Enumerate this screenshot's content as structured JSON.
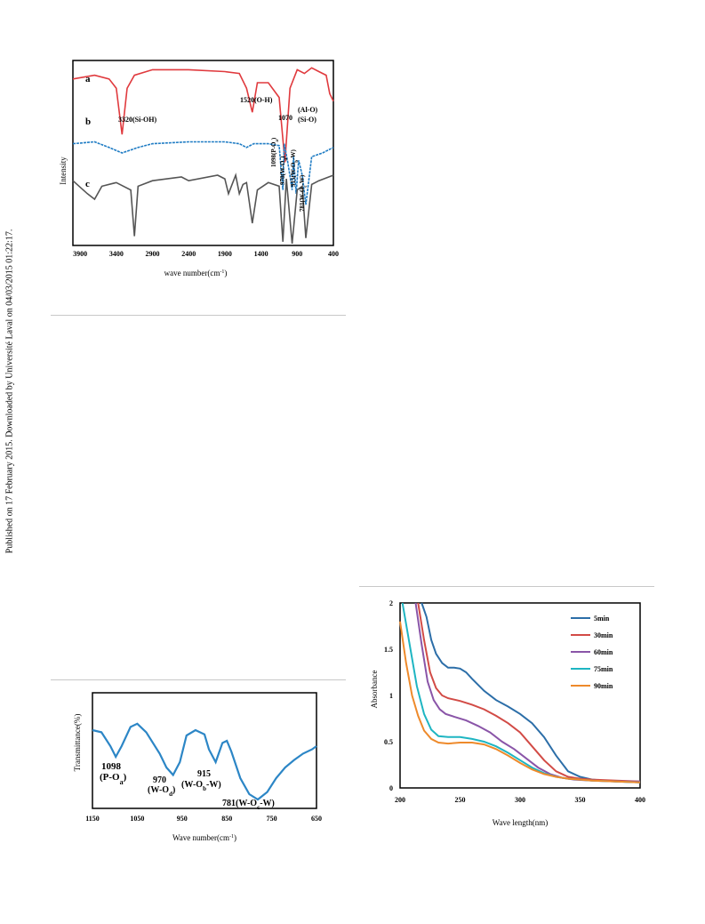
{
  "side_note": "Published on 17 February 2015. Downloaded by Université Laval on 04/03/2015 01:22:17.",
  "colors": {
    "red": "#e03a3e",
    "blue": "#1f7cc4",
    "gray": "#555555",
    "orange": "#ee8a2b",
    "purple": "#8a55a8",
    "teal": "#1eb5c2",
    "darkblue": "#2c6ea8"
  },
  "chart_data": [
    {
      "type": "line",
      "xlabel_main": "wave number(cm",
      "xlabel_sup": "-1",
      "xlabel_end": ")",
      "ylabel": "Intensity",
      "x_ticks": [
        "3900",
        "3400",
        "2900",
        "2400",
        "1900",
        "1400",
        "900",
        "400"
      ],
      "xlim": [
        4000,
        400
      ],
      "series": [
        {
          "name": "a",
          "color": "#e03a3e",
          "x": [
            4000,
            3700,
            3500,
            3400,
            3320,
            3250,
            3150,
            2900,
            2400,
            1900,
            1700,
            1600,
            1520,
            1450,
            1300,
            1150,
            1070,
            1000,
            900,
            800,
            700,
            600,
            500,
            450,
            400
          ],
          "y": [
            0.9,
            0.92,
            0.9,
            0.85,
            0.6,
            0.85,
            0.92,
            0.95,
            0.95,
            0.94,
            0.93,
            0.85,
            0.72,
            0.88,
            0.88,
            0.8,
            0.45,
            0.85,
            0.95,
            0.93,
            0.96,
            0.94,
            0.92,
            0.82,
            0.78
          ]
        },
        {
          "name": "b",
          "color": "#1f7cc4",
          "x": [
            4000,
            3700,
            3500,
            3320,
            3100,
            2900,
            2400,
            1900,
            1700,
            1600,
            1500,
            1300,
            1150,
            1098,
            1080,
            1030,
            970,
            950,
            915,
            880,
            830,
            781,
            700,
            550,
            400
          ],
          "y": [
            0.55,
            0.56,
            0.53,
            0.5,
            0.53,
            0.55,
            0.56,
            0.56,
            0.55,
            0.53,
            0.55,
            0.55,
            0.54,
            0.3,
            0.55,
            0.45,
            0.3,
            0.48,
            0.28,
            0.46,
            0.38,
            0.22,
            0.48,
            0.5,
            0.53
          ]
        },
        {
          "name": "c",
          "color": "#555555",
          "x": [
            4000,
            3800,
            3700,
            3600,
            3400,
            3200,
            3150,
            3100,
            2900,
            2500,
            2400,
            2000,
            1900,
            1850,
            1750,
            1700,
            1650,
            1600,
            1520,
            1450,
            1300,
            1150,
            1098,
            1050,
            970,
            900,
            830,
            781,
            700,
            600,
            400
          ],
          "y": [
            0.35,
            0.28,
            0.25,
            0.32,
            0.34,
            0.3,
            0.05,
            0.32,
            0.35,
            0.37,
            0.35,
            0.38,
            0.36,
            0.28,
            0.38,
            0.28,
            0.33,
            0.34,
            0.12,
            0.3,
            0.34,
            0.32,
            0.02,
            0.36,
            0.01,
            0.3,
            0.32,
            0.04,
            0.33,
            0.35,
            0.38
          ]
        }
      ],
      "series_labels": [
        "a",
        "b",
        "c"
      ],
      "annotations": [
        "3320(Si-OH)",
        "1520(O-H)",
        "1070",
        "(Al-O)",
        "(Si-O)",
        "1098(P-O",
        "a",
        ")",
        "970(W-O",
        "d",
        ")",
        "915(W-O",
        "b",
        "-W)",
        "781(W-O",
        "c",
        "-W)"
      ]
    },
    {
      "type": "line",
      "xlabel_main": "Wave number(cm",
      "xlabel_sup": "-1",
      "xlabel_end": ")",
      "ylabel": "Transmittance(%)",
      "x_ticks": [
        "1150",
        "1050",
        "950",
        "850",
        "750",
        "650"
      ],
      "xlim": [
        1150,
        650
      ],
      "series": [
        {
          "color": "#2c86c6",
          "x": [
            1150,
            1130,
            1110,
            1098,
            1085,
            1065,
            1050,
            1030,
            1000,
            985,
            970,
            955,
            940,
            920,
            900,
            890,
            875,
            860,
            850,
            840,
            820,
            800,
            781,
            760,
            740,
            720,
            700,
            680,
            660,
            650
          ],
          "y": [
            0.7,
            0.68,
            0.55,
            0.45,
            0.55,
            0.73,
            0.76,
            0.68,
            0.48,
            0.35,
            0.28,
            0.4,
            0.65,
            0.7,
            0.66,
            0.52,
            0.4,
            0.58,
            0.6,
            0.5,
            0.25,
            0.1,
            0.05,
            0.12,
            0.25,
            0.35,
            0.42,
            0.48,
            0.52,
            0.55
          ]
        }
      ],
      "annotations": [
        {
          "main": "1098",
          "line2": "(P-O",
          "sub": "a",
          "end": ")"
        },
        {
          "main": "970",
          "line2": "(W-O",
          "sub": "d",
          "end": ")"
        },
        {
          "main": "915",
          "line2": "(W-O",
          "sub": "b",
          "end": "-W)"
        },
        {
          "main": "781(W-O",
          "sub": "c",
          "end": "-W)"
        }
      ]
    },
    {
      "type": "line",
      "xlabel": "Wave length(nm)",
      "ylabel": "Absorbance",
      "x_ticks": [
        "200",
        "250",
        "300",
        "350",
        "400"
      ],
      "y_ticks": [
        "0",
        "0.5",
        "1",
        "1.5",
        "2"
      ],
      "xlim": [
        200,
        400
      ],
      "ylim": [
        0,
        2
      ],
      "legend_position": "top-right",
      "series": [
        {
          "name": "5min",
          "color": "#2c6ea8",
          "x": [
            218,
            222,
            226,
            230,
            235,
            240,
            245,
            250,
            255,
            260,
            270,
            280,
            290,
            300,
            310,
            320,
            330,
            340,
            350,
            360,
            380,
            400
          ],
          "y": [
            2.0,
            1.85,
            1.6,
            1.45,
            1.35,
            1.3,
            1.3,
            1.29,
            1.25,
            1.18,
            1.05,
            0.95,
            0.88,
            0.8,
            0.7,
            0.55,
            0.35,
            0.18,
            0.12,
            0.09,
            0.07,
            0.06
          ]
        },
        {
          "name": "30min",
          "color": "#d24b46",
          "x": [
            215,
            220,
            225,
            230,
            235,
            240,
            250,
            260,
            270,
            280,
            290,
            300,
            310,
            320,
            330,
            340,
            350,
            360,
            380,
            400
          ],
          "y": [
            2.0,
            1.6,
            1.25,
            1.08,
            1.0,
            0.97,
            0.94,
            0.9,
            0.85,
            0.78,
            0.7,
            0.6,
            0.45,
            0.3,
            0.18,
            0.12,
            0.1,
            0.09,
            0.08,
            0.07
          ]
        },
        {
          "name": "60min",
          "color": "#8a55a8",
          "x": [
            213,
            218,
            223,
            228,
            233,
            238,
            245,
            255,
            265,
            275,
            285,
            295,
            305,
            315,
            325,
            335,
            345,
            360,
            380,
            400
          ],
          "y": [
            2.0,
            1.55,
            1.15,
            0.95,
            0.85,
            0.8,
            0.77,
            0.73,
            0.67,
            0.6,
            0.5,
            0.42,
            0.32,
            0.22,
            0.15,
            0.11,
            0.09,
            0.08,
            0.07,
            0.07
          ]
        },
        {
          "name": "75min",
          "color": "#1eb5c2",
          "x": [
            202,
            208,
            214,
            220,
            226,
            232,
            240,
            250,
            260,
            270,
            280,
            290,
            300,
            310,
            320,
            330,
            340,
            350,
            360,
            380,
            400
          ],
          "y": [
            2.0,
            1.55,
            1.1,
            0.8,
            0.63,
            0.56,
            0.55,
            0.55,
            0.53,
            0.5,
            0.45,
            0.38,
            0.3,
            0.22,
            0.16,
            0.12,
            0.1,
            0.09,
            0.08,
            0.07,
            0.06
          ]
        },
        {
          "name": "90min",
          "color": "#ee8a2b",
          "x": [
            200,
            205,
            210,
            215,
            220,
            226,
            232,
            240,
            250,
            260,
            270,
            280,
            290,
            300,
            310,
            320,
            330,
            340,
            350,
            360,
            380,
            400
          ],
          "y": [
            1.8,
            1.35,
            1.0,
            0.78,
            0.62,
            0.53,
            0.49,
            0.48,
            0.49,
            0.49,
            0.47,
            0.42,
            0.35,
            0.27,
            0.2,
            0.15,
            0.12,
            0.1,
            0.09,
            0.08,
            0.07,
            0.06
          ]
        }
      ]
    }
  ]
}
